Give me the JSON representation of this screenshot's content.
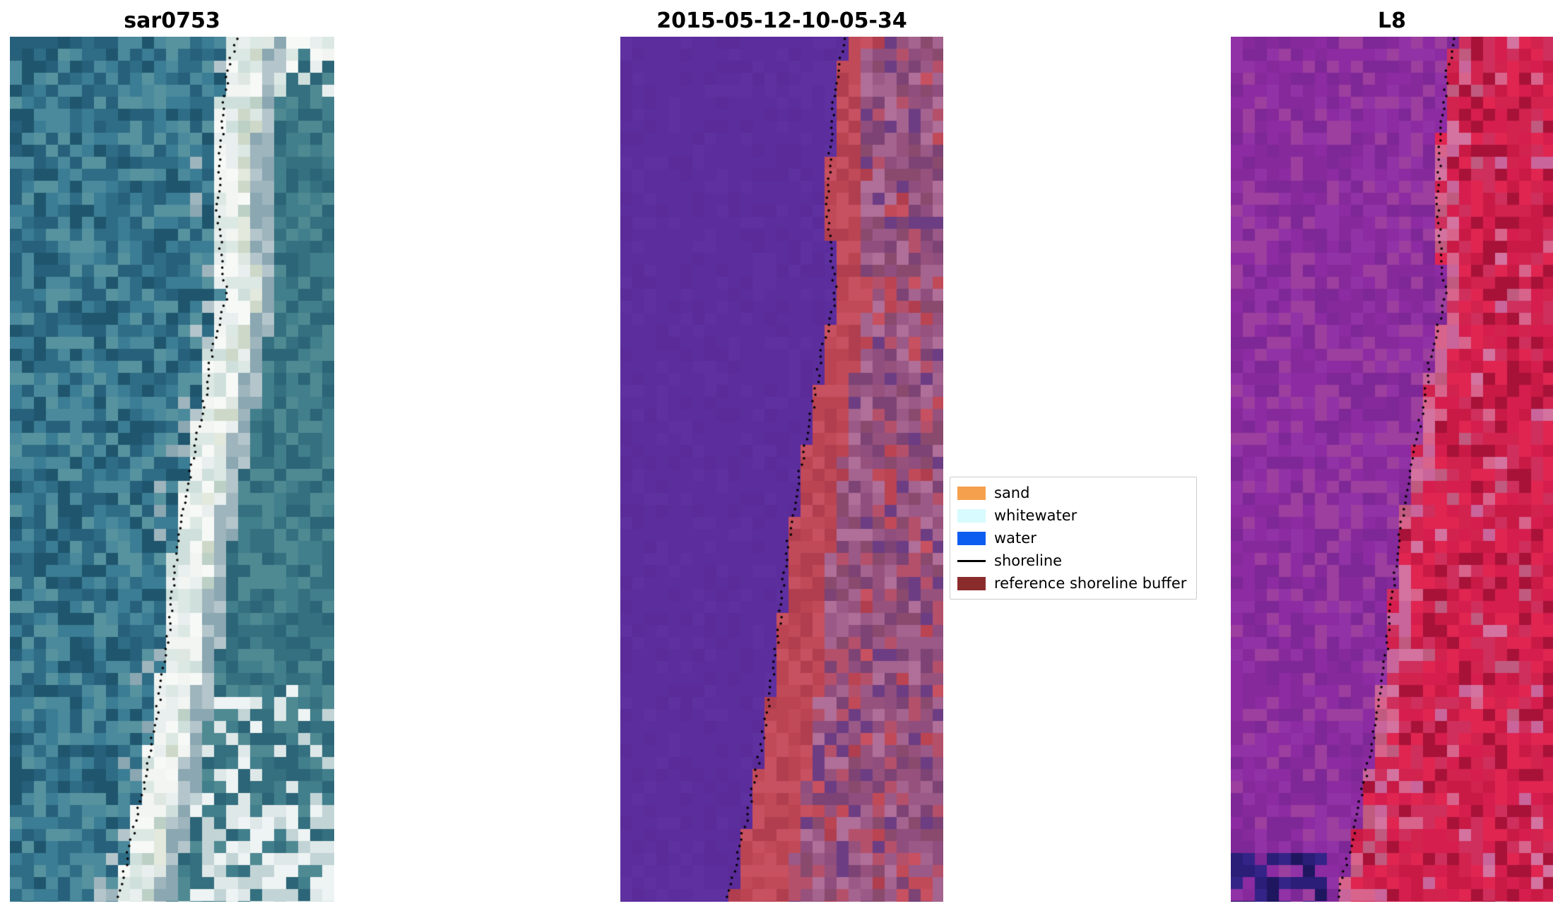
{
  "figure": {
    "background": "#ffffff",
    "panels": [
      {
        "title": "sar0753",
        "kind": "sar",
        "description": "true-colour satellite image: teal ocean on left, bright white sand beach strip, teal/green land with white patches on right, dotted detected shoreline",
        "palette": {
          "water": [
            "#2f6d86",
            "#3b7d94",
            "#4a8a9c",
            "#27607b",
            "#57939f",
            "#1f566e"
          ],
          "strip_bright": [
            "#e9efee",
            "#f2f5f2",
            "#dce8e4",
            "#f7f9f7",
            "#cfe0dc"
          ],
          "strip_tint": [
            "#cdd8c8",
            "#e3e9dd",
            "#bcd0c6",
            "#dfe7e2"
          ],
          "transition": [
            "#9fb5bd",
            "#b4c6cb",
            "#8aa7b2"
          ],
          "right": [
            "#34707f",
            "#417f8c",
            "#2c6577",
            "#4f8a93"
          ],
          "clouds": [
            "#dfe8e8",
            "#c2d4d6",
            "#eef3f3"
          ]
        }
      },
      {
        "title": "2015-05-12-10-05-34",
        "kind": "classified",
        "description": "classified scene: flat purple water on left, red reference shoreline buffer strip along the beach, mottled mauve/pink sand on right, dotted shoreline",
        "palette": {
          "water_class": [
            "#5c2d9c",
            "#5c2d9c",
            "#5c2d9c",
            "#5a2b99",
            "#5e30a0"
          ],
          "buffer": [
            "#c14a58",
            "#bb4452",
            "#c75160",
            "#b03e4e"
          ],
          "right_mix": [
            "#8f4e7e",
            "#9a5987",
            "#a4648f",
            "#7c4374",
            "#b06f98",
            "#8a4a6e",
            "#96527c",
            "#6d3d83",
            "#b5506b"
          ]
        }
      },
      {
        "title": "L8",
        "kind": "l8",
        "description": "Landsat-8 false-colour: magenta-purple water on left, crimson land on right, pink transition along beach, dark navy patch in bottom-left corner, dotted shoreline",
        "palette": {
          "water_purple": [
            "#8c2ba2",
            "#862a9b",
            "#9132a6",
            "#7e2796",
            "#9c3f9e"
          ],
          "pink": [
            "#c9659a",
            "#d4739f",
            "#c05a7e",
            "#d8648c"
          ],
          "red": [
            "#d61e4e",
            "#c81a45",
            "#e02551",
            "#cf2f5c",
            "#a81238",
            "#d2224e"
          ],
          "navy": [
            "#2a1e78",
            "#1f1660",
            "#342488"
          ]
        }
      }
    ],
    "legend": {
      "entries": [
        {
          "label": "sand",
          "color": "#f5a04c",
          "type": "patch"
        },
        {
          "label": "whitewater",
          "color": "#d8fbff",
          "type": "patch"
        },
        {
          "label": "water",
          "color": "#0d5ef0",
          "type": "patch"
        },
        {
          "label": "shoreline",
          "color": "#000000",
          "type": "line"
        },
        {
          "label": "reference shoreline buffer",
          "color": "#8b2c2c",
          "type": "patch"
        }
      ]
    }
  },
  "chart_data": {
    "type": "heatmap",
    "title": "",
    "panels": [
      {
        "title": "sar0753",
        "content": "satellite image with detected shoreline (dotted black)"
      },
      {
        "title": "2015-05-12-10-05-34",
        "content": "image classification with reference shoreline buffer (red strip) and detected shoreline (dotted black)"
      },
      {
        "title": "L8",
        "content": "Landsat-8 false-colour image with detected shoreline (dotted black)"
      }
    ],
    "legend_entries": [
      "sand",
      "whitewater",
      "water",
      "shoreline",
      "reference shoreline buffer"
    ],
    "legend_position": "center-right",
    "shoreline_normalized_xy": [
      [
        0.7,
        0.0
      ],
      [
        0.672,
        0.04
      ],
      [
        0.658,
        0.09
      ],
      [
        0.648,
        0.14
      ],
      [
        0.64,
        0.195
      ],
      [
        0.652,
        0.25
      ],
      [
        0.668,
        0.3
      ],
      [
        0.648,
        0.33
      ],
      [
        0.62,
        0.37
      ],
      [
        0.603,
        0.415
      ],
      [
        0.582,
        0.455
      ],
      [
        0.56,
        0.495
      ],
      [
        0.538,
        0.545
      ],
      [
        0.515,
        0.595
      ],
      [
        0.502,
        0.645
      ],
      [
        0.488,
        0.695
      ],
      [
        0.468,
        0.745
      ],
      [
        0.448,
        0.795
      ],
      [
        0.424,
        0.845
      ],
      [
        0.396,
        0.895
      ],
      [
        0.362,
        0.95
      ],
      [
        0.33,
        1.0
      ]
    ]
  }
}
